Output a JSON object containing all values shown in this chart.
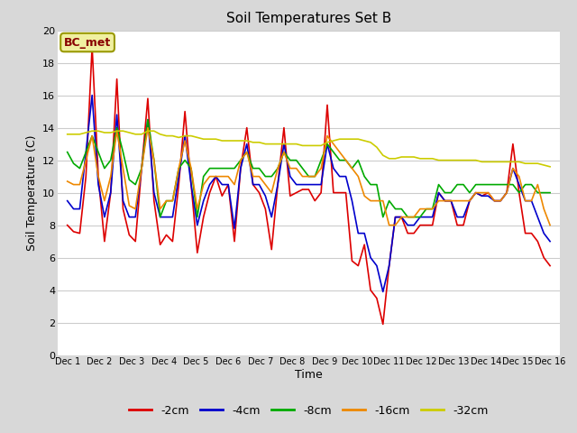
{
  "title": "Soil Temperatures Set B",
  "xlabel": "Time",
  "ylabel": "Soil Temperature (C)",
  "annotation": "BC_met",
  "ylim": [
    0,
    20
  ],
  "outer_bg": "#d8d8d8",
  "plot_bg_color": "#ffffff",
  "grid_color": "#cccccc",
  "colors": {
    "-2cm": "#dd0000",
    "-4cm": "#0000cc",
    "-8cm": "#00aa00",
    "-16cm": "#ee8800",
    "-32cm": "#cccc00"
  },
  "xtick_labels": [
    "Dec 1",
    "Dec 2",
    "Dec 3",
    "Dec 4",
    "Dec 5",
    "Dec 6",
    "Dec 7",
    "Dec 8",
    "Dec 9",
    "Dec 10",
    "Dec 11",
    "Dec 12",
    "Dec 13",
    "Dec 14",
    "Dec 15",
    "Dec 16"
  ],
  "legend_entries": [
    "-2cm",
    "-4cm",
    "-8cm",
    "-16cm",
    "-32cm"
  ],
  "series": {
    "-2cm": [
      8.0,
      7.6,
      7.5,
      11.0,
      19.0,
      11.0,
      7.0,
      10.0,
      17.0,
      9.0,
      7.4,
      7.0,
      11.5,
      15.8,
      9.5,
      6.8,
      7.4,
      7.0,
      10.5,
      15.0,
      10.5,
      6.3,
      8.5,
      10.0,
      11.0,
      9.8,
      10.5,
      7.0,
      11.5,
      14.0,
      10.5,
      10.0,
      9.0,
      6.5,
      10.5,
      14.0,
      9.8,
      10.0,
      10.2,
      10.2,
      9.5,
      10.0,
      15.4,
      10.0,
      10.0,
      10.0,
      5.8,
      5.5,
      6.8,
      4.0,
      3.5,
      1.9,
      5.5,
      8.5,
      8.5,
      7.5,
      7.5,
      8.0,
      8.0,
      8.0,
      10.0,
      9.5,
      9.5,
      8.0,
      8.0,
      9.5,
      10.0,
      9.8,
      10.0,
      9.5,
      9.5,
      10.0,
      13.0,
      10.0,
      7.5,
      7.5,
      7.0,
      6.0,
      5.5
    ],
    "-4cm": [
      9.5,
      9.0,
      9.0,
      12.5,
      16.0,
      10.5,
      8.5,
      10.0,
      14.8,
      9.5,
      8.5,
      8.5,
      11.5,
      14.5,
      10.0,
      8.5,
      8.5,
      8.5,
      11.0,
      13.5,
      10.5,
      8.0,
      9.5,
      10.5,
      11.0,
      10.5,
      10.5,
      7.8,
      11.5,
      13.0,
      10.5,
      10.5,
      9.8,
      8.5,
      10.5,
      13.0,
      11.0,
      10.5,
      10.5,
      10.5,
      10.5,
      10.5,
      13.0,
      11.5,
      11.0,
      11.0,
      9.5,
      7.5,
      7.5,
      6.0,
      5.5,
      3.9,
      5.5,
      8.5,
      8.5,
      8.0,
      8.0,
      8.5,
      8.5,
      8.5,
      10.0,
      9.5,
      9.5,
      8.5,
      8.5,
      9.5,
      10.0,
      9.8,
      9.8,
      9.5,
      9.5,
      10.0,
      11.5,
      10.5,
      9.5,
      9.5,
      8.5,
      7.5,
      7.0
    ],
    "-8cm": [
      12.5,
      11.8,
      11.5,
      12.5,
      13.5,
      12.5,
      11.5,
      12.0,
      14.0,
      12.5,
      10.8,
      10.5,
      11.5,
      14.5,
      12.0,
      8.5,
      9.5,
      9.5,
      11.5,
      12.0,
      11.5,
      8.5,
      11.0,
      11.5,
      11.5,
      11.5,
      11.5,
      11.5,
      12.0,
      12.5,
      11.5,
      11.5,
      11.0,
      11.0,
      11.5,
      12.5,
      12.0,
      12.0,
      11.5,
      11.0,
      11.0,
      12.0,
      13.0,
      12.5,
      12.0,
      12.0,
      11.5,
      12.0,
      11.0,
      10.5,
      10.5,
      8.5,
      9.5,
      9.0,
      9.0,
      8.5,
      8.5,
      8.5,
      9.0,
      9.0,
      10.5,
      10.0,
      10.0,
      10.5,
      10.5,
      10.0,
      10.5,
      10.5,
      10.5,
      10.5,
      10.5,
      10.5,
      10.5,
      10.0,
      10.5,
      10.5,
      10.0,
      10.0,
      10.0
    ],
    "-16cm": [
      10.7,
      10.5,
      10.5,
      12.0,
      13.5,
      11.0,
      9.5,
      11.0,
      13.8,
      11.5,
      9.2,
      9.0,
      11.5,
      14.0,
      12.0,
      9.0,
      9.5,
      9.5,
      11.5,
      13.2,
      11.5,
      9.0,
      10.5,
      11.0,
      11.0,
      11.0,
      11.0,
      10.5,
      12.0,
      12.5,
      11.0,
      11.0,
      10.5,
      10.0,
      11.5,
      12.5,
      11.5,
      11.5,
      11.0,
      11.0,
      11.0,
      11.5,
      13.5,
      13.0,
      12.5,
      12.0,
      11.5,
      11.0,
      9.8,
      9.5,
      9.5,
      9.5,
      8.0,
      8.0,
      8.5,
      8.5,
      8.5,
      9.0,
      9.0,
      9.0,
      9.5,
      9.5,
      9.5,
      9.5,
      9.5,
      9.5,
      10.0,
      10.0,
      10.0,
      9.5,
      9.5,
      10.0,
      11.5,
      11.0,
      9.5,
      9.5,
      10.5,
      9.0,
      8.0
    ],
    "-32cm": [
      13.6,
      13.6,
      13.6,
      13.7,
      13.8,
      13.8,
      13.7,
      13.7,
      13.8,
      13.8,
      13.7,
      13.6,
      13.6,
      13.8,
      13.8,
      13.6,
      13.5,
      13.5,
      13.4,
      13.5,
      13.5,
      13.4,
      13.3,
      13.3,
      13.3,
      13.2,
      13.2,
      13.2,
      13.2,
      13.2,
      13.1,
      13.1,
      13.0,
      13.0,
      13.0,
      13.0,
      13.0,
      13.0,
      12.9,
      12.9,
      12.9,
      12.9,
      13.1,
      13.2,
      13.3,
      13.3,
      13.3,
      13.3,
      13.2,
      13.1,
      12.8,
      12.3,
      12.1,
      12.1,
      12.2,
      12.2,
      12.2,
      12.1,
      12.1,
      12.1,
      12.0,
      12.0,
      12.0,
      12.0,
      12.0,
      12.0,
      12.0,
      11.9,
      11.9,
      11.9,
      11.9,
      11.9,
      11.9,
      11.9,
      11.8,
      11.8,
      11.8,
      11.7,
      11.6
    ]
  }
}
